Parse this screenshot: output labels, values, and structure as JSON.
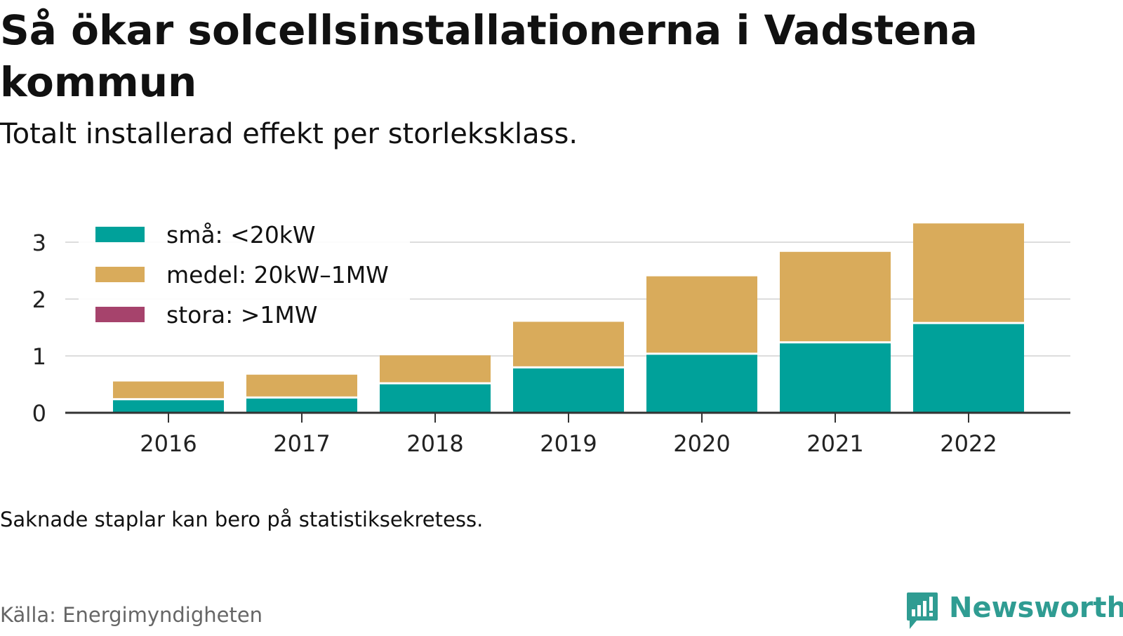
{
  "header": {
    "title": "Så ökar solcellsinstallationerna i Vadstena kommun",
    "subtitle": "Totalt installerad effekt per storleksklass."
  },
  "footer": {
    "note": "Saknade staplar kan bero på statistiksekretess.",
    "source": "Källa: Energimyndigheten",
    "brand": "Newsworthy",
    "brand_icon": "bar-chart-exclamation-icon"
  },
  "chart_data": {
    "type": "bar",
    "stacked": true,
    "title": "Så ökar solcellsinstallationerna i Vadstena kommun",
    "subtitle": "Totalt installerad effekt per storleksklass.",
    "xlabel": "",
    "ylabel": "",
    "categories": [
      "2016",
      "2017",
      "2018",
      "2019",
      "2020",
      "2021",
      "2022"
    ],
    "ylim": [
      0,
      3.3
    ],
    "yticks": [
      0,
      1,
      2,
      3
    ],
    "grid": true,
    "legend_position": "top-left",
    "series": [
      {
        "name": "små: <20kW",
        "color": "#00a19a",
        "values": [
          0.22,
          0.25,
          0.5,
          0.78,
          1.02,
          1.22,
          1.56
        ]
      },
      {
        "name": "medel: 20kW–1MW",
        "color": "#d9ab5b",
        "values": [
          0.33,
          0.42,
          0.51,
          0.82,
          1.38,
          1.61,
          1.77
        ]
      },
      {
        "name": "stora: >1MW",
        "color": "#a6436c",
        "values": [
          0,
          0,
          0,
          0,
          0,
          0,
          0
        ]
      }
    ]
  }
}
